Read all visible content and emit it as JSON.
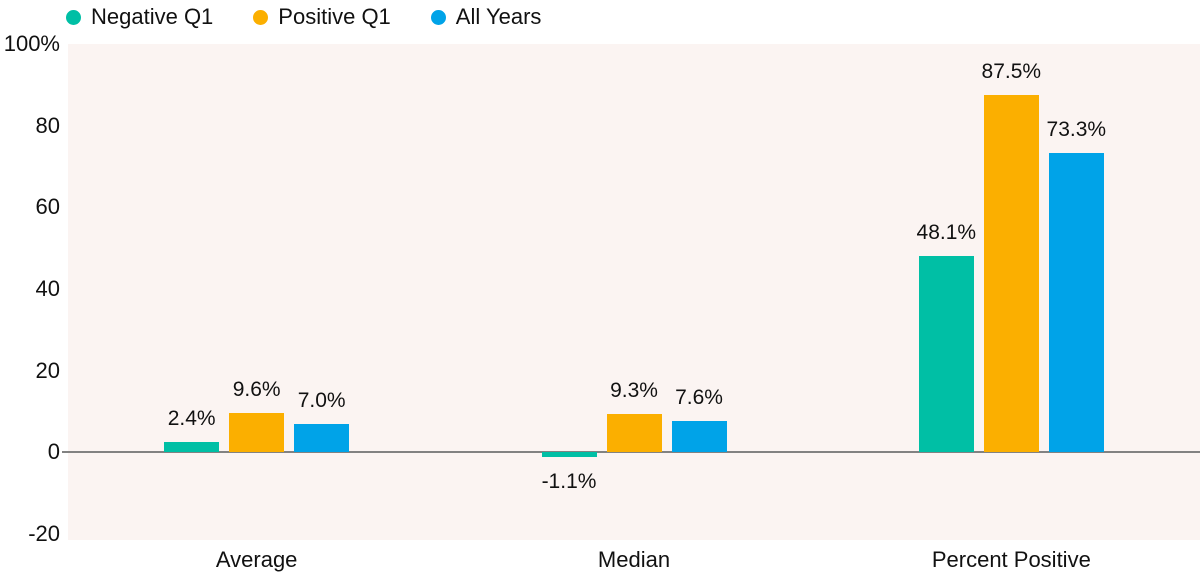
{
  "chart_data": {
    "type": "bar",
    "title": "",
    "categories": [
      "Average",
      "Median",
      "Percent Positive"
    ],
    "series": [
      {
        "name": "Negative Q1",
        "color": "#00BFA5",
        "values": [
          2.4,
          -1.1,
          48.1
        ],
        "labels": [
          "2.4%",
          "-1.1%",
          "48.1%"
        ]
      },
      {
        "name": "Positive Q1",
        "color": "#FBAF00",
        "values": [
          9.6,
          9.3,
          87.5
        ],
        "labels": [
          "9.6%",
          "9.3%",
          "87.5%"
        ]
      },
      {
        "name": "All Years",
        "color": "#00A3E8",
        "values": [
          7.0,
          7.6,
          73.3
        ],
        "labels": [
          "7.0%",
          "7.6%",
          "73.3%"
        ]
      }
    ],
    "y_axis": {
      "min": -21.5,
      "max": 100,
      "ticks": [
        {
          "value": 100,
          "label": "100%"
        },
        {
          "value": 80,
          "label": "80"
        },
        {
          "value": 60,
          "label": "60"
        },
        {
          "value": 40,
          "label": "40"
        },
        {
          "value": 20,
          "label": "20"
        },
        {
          "value": 0,
          "label": "0"
        },
        {
          "value": -20,
          "label": "-20"
        }
      ]
    },
    "grid": false,
    "legend_position": "top-left",
    "plot_background": "#FBF4F2",
    "zero_line_color": "#828282",
    "xlabel": "",
    "ylabel": ""
  }
}
